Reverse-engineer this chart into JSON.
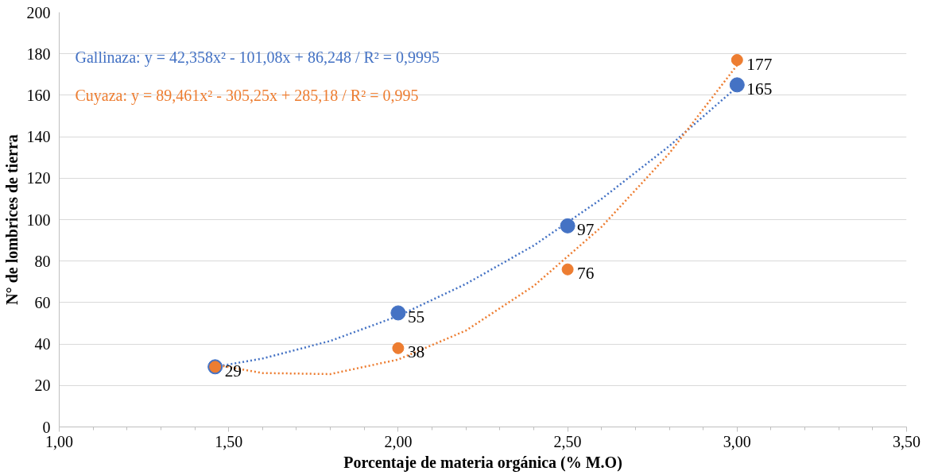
{
  "chart_data": {
    "type": "scatter",
    "xlabel": "Porcentaje de materia orgánica (% M.O)",
    "ylabel": "N° de lombrices de tierra",
    "xlim": [
      1.0,
      3.5
    ],
    "xticks": [
      {
        "value": 1.0,
        "label": "1,00"
      },
      {
        "value": 1.5,
        "label": "1,50"
      },
      {
        "value": 2.0,
        "label": "2,00"
      },
      {
        "value": 2.5,
        "label": "2,50"
      },
      {
        "value": 3.0,
        "label": "3,00"
      },
      {
        "value": 3.5,
        "label": "3,50"
      }
    ],
    "ylim": [
      0,
      200
    ],
    "yticks": [
      0,
      20,
      40,
      60,
      80,
      100,
      120,
      140,
      160,
      180,
      200
    ],
    "grid": "y",
    "annotations": [
      "Gallinaza:  y = 42,358x² - 101,08x + 86,248 / R² = 0,9995",
      "Cuyaza: y = 89,461x² - 305,25x + 285,18 / R² = 0,995"
    ],
    "series": [
      {
        "type": "line",
        "color": "#4472c4",
        "line_style": "dotted",
        "x": [
          1.46,
          1.6,
          1.8,
          2.0,
          2.2,
          2.4,
          2.6,
          2.8,
          3.0
        ],
        "values": [
          29,
          33,
          41.5,
          53.5,
          69,
          87.5,
          110,
          135.5,
          164
        ]
      },
      {
        "type": "line",
        "color": "#ed7d31",
        "line_style": "dotted",
        "x": [
          1.46,
          1.6,
          1.8,
          2.0,
          2.2,
          2.4,
          2.6,
          2.8,
          3.0
        ],
        "values": [
          30,
          26,
          25.5,
          32.5,
          46.5,
          68,
          96.5,
          132,
          174.5
        ]
      },
      {
        "marker": "circle",
        "color": "#4472c4",
        "x": [
          1.46,
          2.0,
          2.5,
          3.0
        ],
        "values": [
          29,
          55,
          97,
          165
        ],
        "value_labels": [
          "29",
          "55",
          "97",
          "165"
        ]
      },
      {
        "marker": "circle",
        "color": "#ed7d31",
        "x": [
          1.46,
          2.0,
          2.5,
          3.0
        ],
        "values": [
          29,
          38,
          76,
          177
        ],
        "value_labels": [
          null,
          "38",
          "76",
          "177"
        ]
      }
    ]
  }
}
